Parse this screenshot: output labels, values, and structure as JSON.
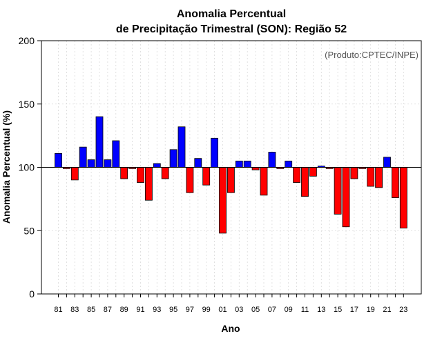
{
  "chart_data": {
    "type": "bar",
    "title": "Anomalia Percentual",
    "subtitle": "de Precipitação Trimestral (SON): Região 52",
    "xlabel": "Ano",
    "ylabel": "Anomalia Percentual (%)",
    "credit": "(Produto:CPTEC/INPE)",
    "ylim": [
      0,
      200
    ],
    "yticks": [
      "0",
      "50",
      "100",
      "150",
      "200"
    ],
    "baseline": 100,
    "grid": true,
    "positive_color": "#0000ff",
    "negative_color": "#ff0000",
    "categories": [
      "1981",
      "1982",
      "1983",
      "1984",
      "1985",
      "1986",
      "1987",
      "1988",
      "1989",
      "1990",
      "1991",
      "1992",
      "1993",
      "1994",
      "1995",
      "1996",
      "1997",
      "1998",
      "1999",
      "2000",
      "2001",
      "2002",
      "2003",
      "2004",
      "2005",
      "2006",
      "2007",
      "2008",
      "2009",
      "2010",
      "2011",
      "2012",
      "2013",
      "2014",
      "2015",
      "2016",
      "2017",
      "2018",
      "2019",
      "2020",
      "2021",
      "2022",
      "2023"
    ],
    "values": [
      111,
      99,
      90,
      116,
      106,
      140,
      106,
      121,
      91,
      99,
      88,
      74,
      103,
      91,
      114,
      132,
      80,
      107,
      86,
      123,
      48,
      80,
      105,
      105,
      98,
      78,
      112,
      99,
      105,
      88,
      77,
      93,
      101,
      99,
      63,
      53,
      91,
      99,
      85,
      84,
      108,
      76,
      52
    ],
    "xtick_labels": [
      "81",
      "83",
      "85",
      "87",
      "89",
      "91",
      "93",
      "95",
      "97",
      "99",
      "01",
      "03",
      "05",
      "07",
      "09",
      "11",
      "13",
      "15",
      "17",
      "19",
      "21",
      "23"
    ]
  }
}
